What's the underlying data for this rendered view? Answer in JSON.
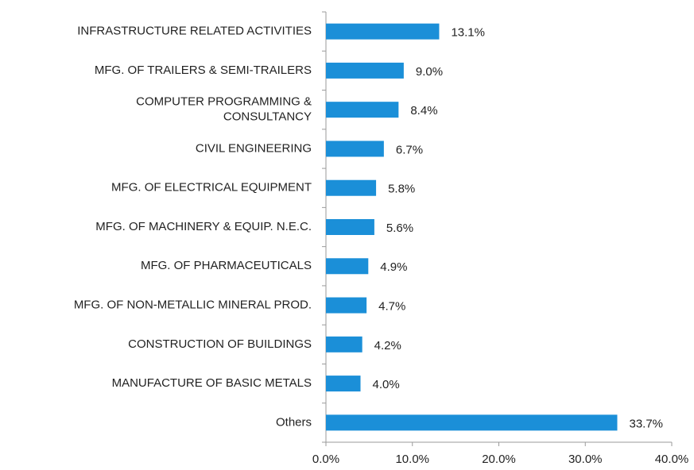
{
  "chart_data": {
    "type": "barh",
    "categories": [
      "INFRASTRUCTURE RELATED ACTIVITIES",
      "MFG. OF TRAILERS & SEMI-TRAILERS",
      [
        "COMPUTER PROGRAMMING &",
        "CONSULTANCY"
      ],
      "CIVIL ENGINEERING",
      "MFG. OF ELECTRICAL EQUIPMENT",
      "MFG. OF MACHINERY & EQUIP. N.E.C.",
      "MFG. OF PHARMACEUTICALS",
      "MFG. OF NON-METALLIC MINERAL PROD.",
      "CONSTRUCTION OF BUILDINGS",
      "MANUFACTURE OF BASIC METALS",
      "Others"
    ],
    "values": [
      13.1,
      9.0,
      8.4,
      6.7,
      5.8,
      5.6,
      4.9,
      4.7,
      4.2,
      4.0,
      33.7
    ],
    "value_labels": [
      "13.1%",
      "9.0%",
      "8.4%",
      "6.7%",
      "5.8%",
      "5.6%",
      "4.9%",
      "4.7%",
      "4.2%",
      "4.0%",
      "33.7%"
    ],
    "color": "#1b8fd8",
    "xlim": [
      0,
      40
    ],
    "xticks": [
      {
        "value": 0,
        "label": "0.0%"
      },
      {
        "value": 10,
        "label": "10.0%"
      },
      {
        "value": 20,
        "label": "20.0%"
      },
      {
        "value": 30,
        "label": "30.0%"
      },
      {
        "value": 40,
        "label": "40.0%"
      }
    ],
    "grid": false
  }
}
